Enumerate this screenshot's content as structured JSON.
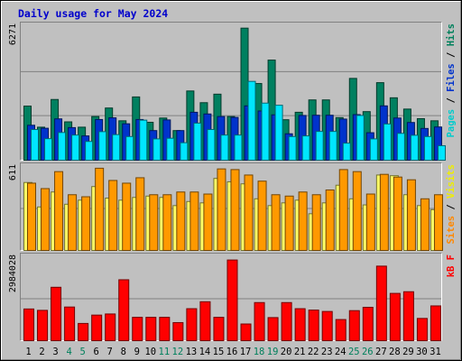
{
  "chart_data": {
    "type": "bar",
    "title": "Daily usage for May 2024",
    "x": [
      "1",
      "2",
      "3",
      "4",
      "5",
      "6",
      "7",
      "8",
      "9",
      "10",
      "11",
      "12",
      "13",
      "14",
      "15",
      "16",
      "17",
      "18",
      "19",
      "20",
      "21",
      "22",
      "23",
      "24",
      "25",
      "26",
      "27",
      "28",
      "29",
      "30",
      "31"
    ],
    "weekend_days": [
      "4",
      "5",
      "11",
      "12",
      "18",
      "19",
      "25",
      "26"
    ],
    "panels": [
      {
        "id": "hits",
        "ymax_label": "6271",
        "ymax": 6271,
        "ylabels": [
          {
            "text": "Pages",
            "color": "#00cccc"
          },
          {
            "text": " / ",
            "color": "#000000"
          },
          {
            "text": "Files",
            "color": "#0033cc"
          },
          {
            "text": " / ",
            "color": "#000000"
          },
          {
            "text": "Hits",
            "color": "#00805c"
          }
        ],
        "series": [
          {
            "name": "Hits",
            "color": "#008060",
            "values": [
              2540,
              1550,
              2850,
              1800,
              1550,
              2050,
              2450,
              1850,
              2970,
              1780,
              1980,
              1390,
              3250,
              2700,
              3100,
              2050,
              6200,
              3600,
              4700,
              1900,
              2250,
              2830,
              2830,
              2000,
              3840,
              2280,
              3640,
              2930,
              2400,
              1950,
              1850
            ]
          },
          {
            "name": "Files",
            "color": "#0033cc",
            "values": [
              1640,
              1500,
              1940,
              1530,
              1140,
              1910,
              1990,
              1710,
              1910,
              1390,
              1890,
              1390,
              2250,
              2170,
              2050,
              2010,
              2550,
              2310,
              2130,
              1240,
              2100,
              2110,
              2110,
              1930,
              2140,
              1290,
              2550,
              1980,
              1770,
              1490,
              1560
            ]
          },
          {
            "name": "Pages",
            "color": "#00e6ff",
            "values": [
              1440,
              1010,
              1300,
              1180,
              880,
              1340,
              1200,
              1110,
              1880,
              1000,
              1030,
              820,
              1740,
              1440,
              1180,
              1180,
              3700,
              2680,
              2580,
              1110,
              1140,
              1350,
              1350,
              800,
              2100,
              1000,
              1700,
              1260,
              1170,
              1110,
              680
            ]
          }
        ]
      },
      {
        "id": "visits",
        "ymax_label": "611",
        "ymax": 611,
        "ylabels": [
          {
            "text": "Sites",
            "color": "#ff8800"
          },
          {
            "text": " / ",
            "color": "#000000"
          },
          {
            "text": "Visits",
            "color": "#eeee00"
          }
        ],
        "series": [
          {
            "name": "Visits",
            "color": "#ffff66",
            "values": [
              500,
              320,
              430,
              340,
              370,
              470,
              385,
              370,
              390,
              400,
              390,
              330,
              360,
              350,
              530,
              505,
              490,
              380,
              330,
              350,
              370,
              270,
              350,
              480,
              380,
              335,
              555,
              550,
              410,
              330,
              300
            ]
          },
          {
            "name": "Sites",
            "color": "#ff9900",
            "values": [
              495,
              455,
              580,
              410,
              395,
              605,
              515,
              495,
              535,
              410,
              410,
              430,
              430,
              415,
              600,
              595,
              555,
              510,
              410,
              400,
              430,
              410,
              445,
              595,
              580,
              415,
              560,
              540,
              520,
              380,
              410
            ]
          }
        ]
      },
      {
        "id": "kb",
        "ymax_label": "2984028",
        "ymax": 2984028,
        "ylabels": [
          {
            "text": "kB F",
            "color": "#ff0000"
          }
        ],
        "series": [
          {
            "name": "kB F",
            "color": "#ff0000",
            "values": [
              1140000,
              1090000,
              1920000,
              1210000,
              620000,
              920000,
              960000,
              2190000,
              840000,
              840000,
              840000,
              650000,
              1150000,
              1400000,
              840000,
              2900000,
              600000,
              1370000,
              830000,
              1370000,
              1150000,
              1100000,
              1050000,
              760000,
              1080000,
              1200000,
              2680000,
              1700000,
              1760000,
              800000,
              1250000
            ]
          }
        ]
      }
    ]
  }
}
